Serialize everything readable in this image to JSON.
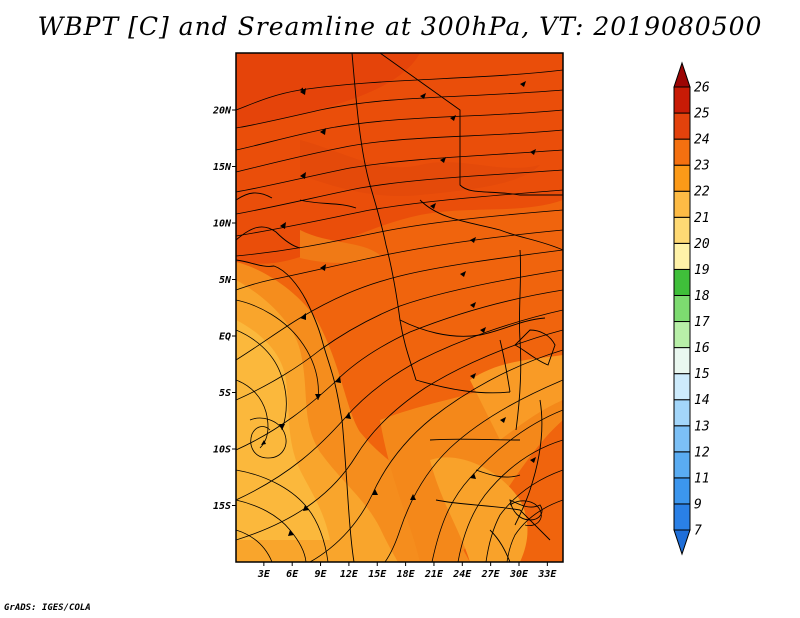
{
  "title": "WBPT [C] and Sreamline at 300hPa, VT: 2019080500",
  "footer": "GrADS: IGES/COLA",
  "map": {
    "lat_labels": [
      "20N",
      "15N",
      "10N",
      "5N",
      "EQ",
      "5S",
      "10S",
      "15S"
    ],
    "lat_values": [
      20,
      15,
      10,
      5,
      0,
      -5,
      -10,
      -15
    ],
    "lon_labels": [
      "3E",
      "6E",
      "9E",
      "12E",
      "15E",
      "18E",
      "21E",
      "24E",
      "27E",
      "30E",
      "33E"
    ],
    "lon_values": [
      3,
      6,
      9,
      12,
      15,
      18,
      21,
      24,
      27,
      30,
      33
    ]
  },
  "colorbar": {
    "levels": [
      "7",
      "9",
      "11",
      "12",
      "13",
      "14",
      "15",
      "16",
      "17",
      "18",
      "19",
      "20",
      "21",
      "22",
      "23",
      "24",
      "25",
      "26"
    ],
    "colors": [
      "#1e6ed8",
      "#2a80e6",
      "#3c96ee",
      "#5aacf2",
      "#7cc0f6",
      "#a3d6fa",
      "#cdebfc",
      "#eaf8f0",
      "#b8efa8",
      "#7ddb70",
      "#3fbf3a",
      "#fff2a8",
      "#fed974",
      "#fdbb45",
      "#fc9a18",
      "#f47010",
      "#e3420c",
      "#c81b06",
      "#9c0504"
    ]
  }
}
